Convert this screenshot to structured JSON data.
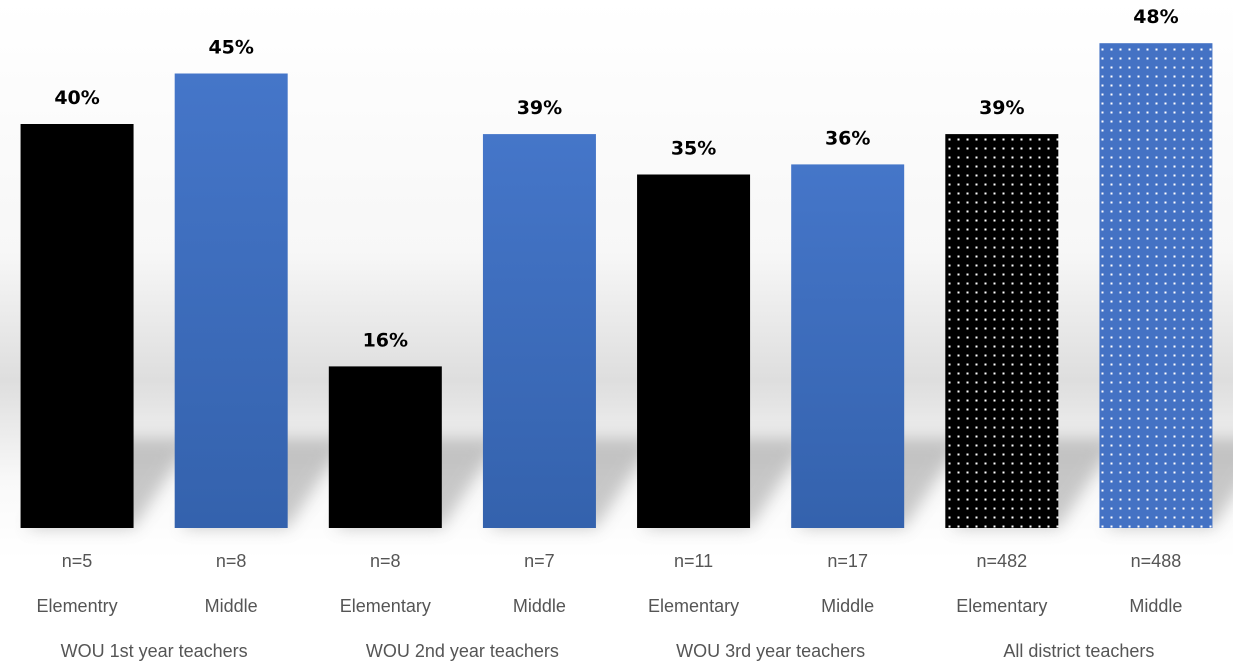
{
  "chart_data": {
    "type": "bar",
    "title": "",
    "xlabel": "",
    "ylabel": "",
    "ylim": [
      0,
      50
    ],
    "grid": false,
    "legend": "none",
    "value_suffix": "%",
    "categories": [
      {
        "value": 40,
        "n_label": "n=5",
        "level": "Elementry",
        "group": "WOU 1st year teachers",
        "style": "black-solid"
      },
      {
        "value": 45,
        "n_label": "n=8",
        "level": "Middle",
        "group": "WOU 1st year teachers",
        "style": "blue-solid"
      },
      {
        "value": 16,
        "n_label": "n=8",
        "level": "Elementary",
        "group": "WOU 2nd year teachers",
        "style": "black-solid"
      },
      {
        "value": 39,
        "n_label": "n=7",
        "level": "Middle",
        "group": "WOU 2nd year teachers",
        "style": "blue-solid"
      },
      {
        "value": 35,
        "n_label": "n=11",
        "level": "Elementary",
        "group": "WOU 3rd year teachers",
        "style": "black-solid"
      },
      {
        "value": 36,
        "n_label": "n=17",
        "level": "Middle",
        "group": "WOU 3rd year teachers",
        "style": "blue-solid"
      },
      {
        "value": 39,
        "n_label": "n=482",
        "level": "Elementary",
        "group": "All district teachers",
        "style": "black-dotted"
      },
      {
        "value": 48,
        "n_label": "n=488",
        "level": "Middle",
        "group": "All district teachers",
        "style": "blue-dotted"
      }
    ],
    "groups": [
      "WOU 1st year teachers",
      "WOU 2nd year teachers",
      "WOU 3rd year teachers",
      "All district teachers"
    ],
    "colors": {
      "black": "#000000",
      "blue": "#4472c4",
      "blue_dark": "#3462ad",
      "text": "#000000",
      "label_text": "#555555"
    }
  }
}
